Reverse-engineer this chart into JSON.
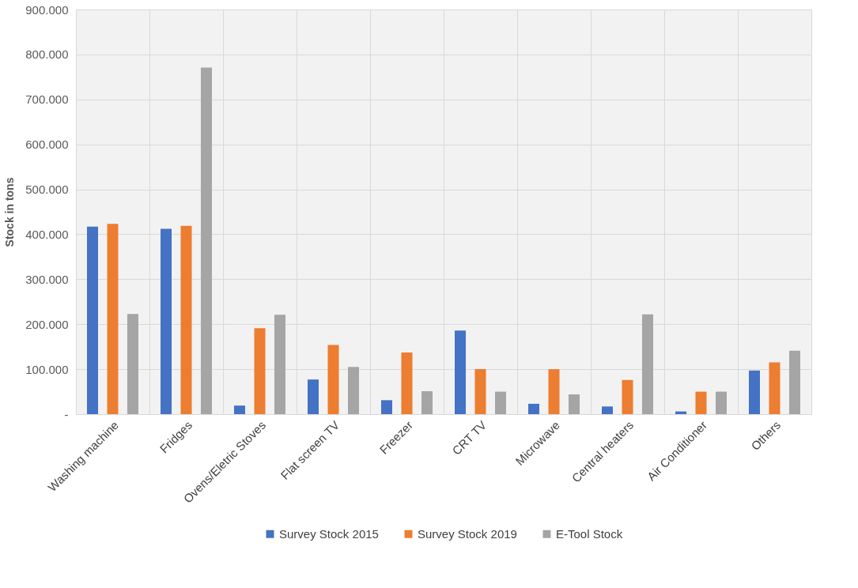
{
  "chart_data": {
    "type": "bar",
    "ylabel": "Stock in tons",
    "categories": [
      "Washing machine",
      "Fridges",
      "Ovens/Eletric Stoves",
      "Flat screen TV",
      "Freezer",
      "CRT TV",
      "Microwave",
      "Central heaters",
      "Air Conditioner",
      "Others"
    ],
    "series": [
      {
        "name": "Survey Stock 2015",
        "color": "#4472c4",
        "values": [
          417000,
          412000,
          19000,
          77000,
          31000,
          186000,
          23000,
          17000,
          6000,
          97000
        ]
      },
      {
        "name": "Survey Stock 2019",
        "color": "#ed7d31",
        "values": [
          423000,
          419000,
          191000,
          154000,
          137000,
          100000,
          100000,
          76000,
          50000,
          115000
        ]
      },
      {
        "name": "E-Tool Stock",
        "color": "#a5a5a5",
        "values": [
          223000,
          771000,
          221000,
          105000,
          51000,
          50000,
          44000,
          222000,
          50000,
          141000
        ]
      }
    ],
    "ylim": [
      0,
      900000
    ],
    "yticks": [
      {
        "value": 0,
        "label": "-"
      },
      {
        "value": 100000,
        "label": "100.000"
      },
      {
        "value": 200000,
        "label": "200.000"
      },
      {
        "value": 300000,
        "label": "300.000"
      },
      {
        "value": 400000,
        "label": "400.000"
      },
      {
        "value": 500000,
        "label": "500.000"
      },
      {
        "value": 600000,
        "label": "600.000"
      },
      {
        "value": 700000,
        "label": "700.000"
      },
      {
        "value": 800000,
        "label": "800.000"
      },
      {
        "value": 900000,
        "label": "900.000"
      }
    ],
    "grid": true,
    "legend": "bottom"
  }
}
